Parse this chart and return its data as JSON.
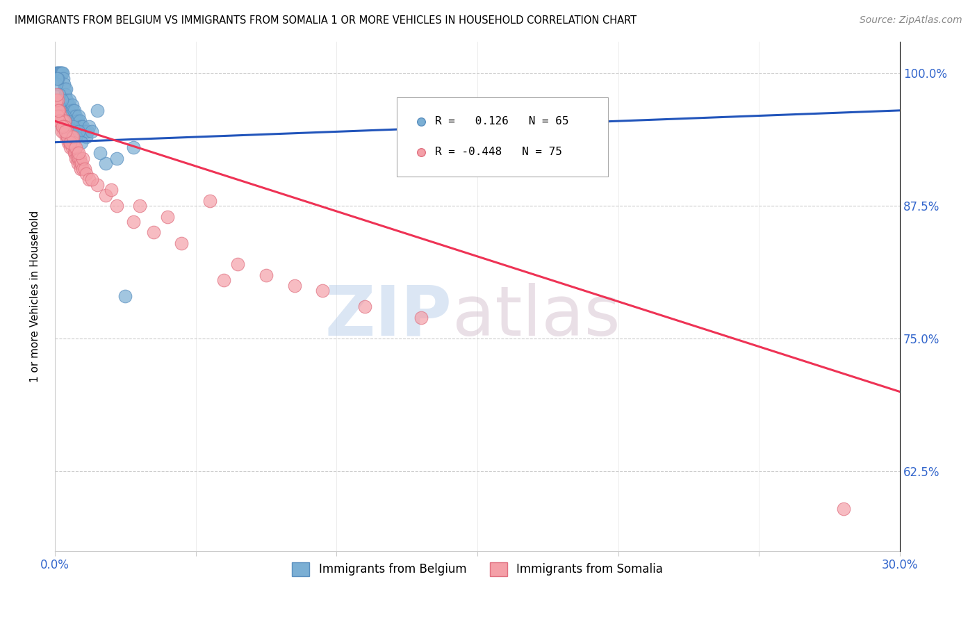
{
  "title": "IMMIGRANTS FROM BELGIUM VS IMMIGRANTS FROM SOMALIA 1 OR MORE VEHICLES IN HOUSEHOLD CORRELATION CHART",
  "source": "Source: ZipAtlas.com",
  "ylabel": "1 or more Vehicles in Household",
  "xlim": [
    0.0,
    30.0
  ],
  "ylim": [
    55.0,
    103.0
  ],
  "yticks": [
    62.5,
    75.0,
    87.5,
    100.0
  ],
  "xticks": [
    0.0,
    5.0,
    10.0,
    15.0,
    20.0,
    25.0,
    30.0
  ],
  "ytick_labels": [
    "62.5%",
    "75.0%",
    "87.5%",
    "100.0%"
  ],
  "belgium_color": "#7BAFD4",
  "somalia_color": "#F4A0A8",
  "belgium_edge": "#5A8FBF",
  "somalia_edge": "#E07080",
  "trend_belgium_color": "#2255BB",
  "trend_somalia_color": "#EE3355",
  "R_belgium": 0.126,
  "N_belgium": 65,
  "R_somalia": -0.448,
  "N_somalia": 75,
  "watermark_zip": "ZIP",
  "watermark_atlas": "atlas",
  "legend_label_belgium": "Immigrants from Belgium",
  "legend_label_somalia": "Immigrants from Somalia",
  "bel_trend_x0": 0.0,
  "bel_trend_y0": 93.5,
  "bel_trend_x1": 30.0,
  "bel_trend_y1": 96.5,
  "som_trend_x0": 0.0,
  "som_trend_y0": 95.5,
  "som_trend_x1": 30.0,
  "som_trend_y1": 70.0,
  "belgium_x": [
    0.05,
    0.08,
    0.1,
    0.12,
    0.15,
    0.18,
    0.2,
    0.22,
    0.25,
    0.28,
    0.3,
    0.32,
    0.35,
    0.38,
    0.4,
    0.42,
    0.45,
    0.48,
    0.5,
    0.52,
    0.55,
    0.58,
    0.6,
    0.62,
    0.65,
    0.68,
    0.7,
    0.72,
    0.75,
    0.78,
    0.8,
    0.82,
    0.85,
    0.88,
    0.9,
    0.92,
    0.95,
    0.98,
    1.0,
    1.05,
    1.1,
    1.15,
    1.2,
    1.3,
    1.5,
    1.8,
    2.2,
    0.06,
    0.09,
    0.14,
    0.24,
    0.34,
    0.44,
    0.54,
    0.64,
    0.74,
    0.84,
    0.94,
    1.6,
    2.8,
    0.07,
    0.13,
    0.27,
    0.37,
    2.5
  ],
  "belgium_y": [
    100.0,
    100.0,
    100.0,
    100.0,
    100.0,
    100.0,
    100.0,
    100.0,
    100.0,
    100.0,
    99.5,
    99.0,
    98.5,
    98.0,
    98.5,
    97.5,
    97.0,
    96.5,
    97.0,
    97.5,
    96.5,
    96.0,
    96.5,
    97.0,
    96.5,
    96.0,
    96.5,
    95.5,
    96.0,
    95.5,
    95.0,
    95.5,
    96.0,
    95.0,
    95.5,
    94.5,
    95.0,
    94.5,
    95.0,
    94.5,
    94.0,
    94.5,
    95.0,
    94.5,
    96.5,
    91.5,
    92.0,
    99.0,
    99.5,
    98.0,
    97.5,
    96.0,
    95.5,
    94.5,
    95.0,
    94.0,
    94.5,
    93.5,
    92.5,
    93.0,
    99.5,
    97.0,
    96.0,
    95.5,
    79.0
  ],
  "somalia_x": [
    0.05,
    0.08,
    0.1,
    0.12,
    0.15,
    0.18,
    0.2,
    0.22,
    0.25,
    0.28,
    0.3,
    0.32,
    0.35,
    0.38,
    0.4,
    0.42,
    0.45,
    0.48,
    0.5,
    0.52,
    0.55,
    0.58,
    0.6,
    0.62,
    0.65,
    0.68,
    0.7,
    0.72,
    0.75,
    0.78,
    0.8,
    0.82,
    0.85,
    0.88,
    0.9,
    0.92,
    0.95,
    0.98,
    1.0,
    1.05,
    1.1,
    1.2,
    1.5,
    1.8,
    2.2,
    2.8,
    3.5,
    4.5,
    5.5,
    6.5,
    7.5,
    8.5,
    9.5,
    11.0,
    13.0,
    0.06,
    0.09,
    0.14,
    0.24,
    0.34,
    0.44,
    0.54,
    0.64,
    0.74,
    0.84,
    0.07,
    0.13,
    0.27,
    0.37,
    1.3,
    2.0,
    3.0,
    4.0,
    6.0,
    28.0
  ],
  "somalia_y": [
    97.0,
    96.5,
    97.5,
    96.0,
    96.5,
    95.5,
    96.0,
    95.5,
    95.0,
    95.5,
    94.5,
    95.0,
    95.5,
    94.5,
    94.0,
    94.5,
    94.0,
    93.5,
    94.0,
    93.5,
    93.0,
    93.5,
    94.0,
    93.0,
    93.5,
    92.5,
    93.0,
    92.5,
    92.0,
    92.5,
    92.0,
    91.5,
    92.0,
    91.5,
    92.0,
    91.0,
    91.5,
    91.0,
    92.0,
    91.0,
    90.5,
    90.0,
    89.5,
    88.5,
    87.5,
    86.0,
    85.0,
    84.0,
    88.0,
    82.0,
    81.0,
    80.0,
    79.5,
    78.0,
    77.0,
    97.5,
    96.0,
    95.5,
    94.5,
    95.0,
    94.0,
    93.5,
    94.0,
    93.0,
    92.5,
    98.0,
    96.5,
    95.0,
    94.5,
    90.0,
    89.0,
    87.5,
    86.5,
    80.5,
    59.0
  ]
}
